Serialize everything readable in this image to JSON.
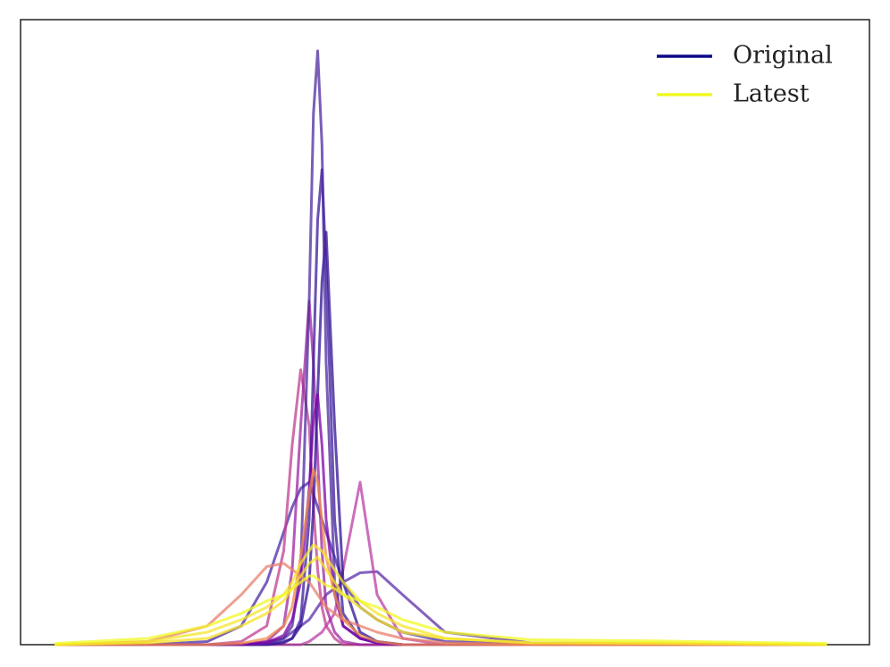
{
  "chart_data": {
    "type": "line",
    "xlim": [
      0,
      100
    ],
    "ylim": [
      0,
      100
    ],
    "x": [
      4,
      15,
      22,
      26,
      29,
      31,
      32,
      33,
      34,
      34.5,
      35,
      35.5,
      36,
      37,
      38,
      40,
      42,
      45,
      50,
      60,
      75,
      95
    ],
    "legend": [
      {
        "name": "Original",
        "color": "#0d0887"
      },
      {
        "name": "Latest",
        "color": "#f0f921"
      }
    ],
    "series": [
      {
        "color": "#5c2da8",
        "values": [
          0,
          0,
          0,
          0,
          0.5,
          1,
          2,
          3,
          4,
          5,
          6,
          7,
          8,
          9,
          10,
          11.5,
          11.7,
          8,
          2,
          0.3,
          0,
          0
        ]
      },
      {
        "color": "#4a2aa8",
        "values": [
          0,
          0,
          0.5,
          3,
          10,
          18,
          22,
          25,
          26,
          24,
          22,
          20,
          18,
          14,
          10,
          6,
          4,
          2,
          0.5,
          0.2,
          0,
          0
        ]
      },
      {
        "color": "#b93da6",
        "values": [
          0,
          0,
          0,
          0,
          0,
          0,
          0,
          0,
          0.5,
          1,
          1.5,
          2,
          3,
          5,
          12,
          26,
          8,
          1,
          0,
          0,
          0,
          0
        ]
      },
      {
        "color": "#c03d8f",
        "values": [
          0,
          0,
          0,
          0.5,
          3,
          15,
          32,
          44,
          35,
          22,
          12,
          6,
          3,
          1,
          0,
          0,
          0,
          0,
          0,
          0,
          0,
          0
        ]
      },
      {
        "color": "#9c24a0",
        "values": [
          0,
          0,
          0,
          0,
          0.5,
          3,
          12,
          35,
          55,
          45,
          30,
          15,
          6,
          2,
          0.5,
          0,
          0,
          0,
          0,
          0,
          0,
          0
        ]
      },
      {
        "color": "#2f0f94",
        "values": [
          0,
          0,
          0,
          0,
          0,
          0.3,
          1,
          3,
          10,
          22,
          40,
          58,
          66,
          35,
          10,
          2,
          0.5,
          0,
          0,
          0,
          0,
          0
        ]
      },
      {
        "color": "#3a1a9a",
        "values": [
          0,
          0,
          0,
          0,
          0.1,
          0.5,
          1,
          4,
          20,
          45,
          68,
          76,
          60,
          20,
          5,
          1,
          0.3,
          0,
          0,
          0,
          0,
          0
        ]
      },
      {
        "color": "#4c2a9f",
        "values": [
          0,
          0,
          0,
          0,
          0.2,
          1,
          3,
          12,
          55,
          85,
          95,
          80,
          45,
          10,
          3,
          1,
          0.5,
          0,
          0,
          0,
          0,
          0
        ]
      },
      {
        "color": "#7e03a8",
        "values": [
          0,
          0,
          0,
          0,
          0.3,
          1.5,
          4,
          10,
          25,
          36,
          40,
          32,
          20,
          8,
          3,
          1,
          0.3,
          0,
          0,
          0,
          0,
          0
        ]
      },
      {
        "color": "#e8806c",
        "values": [
          0,
          0.5,
          3,
          8,
          12.5,
          13,
          12,
          11,
          10,
          9,
          8,
          7,
          6,
          5,
          4,
          3,
          2,
          1,
          0.3,
          0,
          0,
          0
        ]
      },
      {
        "color": "#f08a4b",
        "values": [
          0,
          0,
          0,
          0.2,
          1,
          3,
          6,
          14,
          24,
          28,
          26,
          20,
          14,
          8,
          4,
          1.5,
          0.5,
          0,
          0,
          0,
          0,
          0
        ]
      },
      {
        "color": "#f5e62a",
        "values": [
          0,
          0.5,
          2,
          4,
          6,
          8,
          10,
          13,
          15,
          16,
          15.5,
          15,
          14,
          12,
          10,
          7,
          5,
          3,
          1,
          0.3,
          0.3,
          0
        ]
      },
      {
        "color": "#f7e225",
        "values": [
          0,
          0.3,
          1,
          3,
          5,
          7,
          9,
          11,
          13,
          13.5,
          14,
          13,
          12,
          10,
          8,
          6,
          4,
          2,
          1,
          0.3,
          0.2,
          0
        ]
      },
      {
        "color": "#f0f921",
        "values": [
          0.2,
          1,
          3,
          5,
          7,
          8,
          9,
          10,
          11,
          11,
          10.5,
          10,
          9.5,
          9,
          8,
          7,
          6,
          4,
          2,
          0.8,
          0.6,
          0.2
        ]
      }
    ]
  }
}
